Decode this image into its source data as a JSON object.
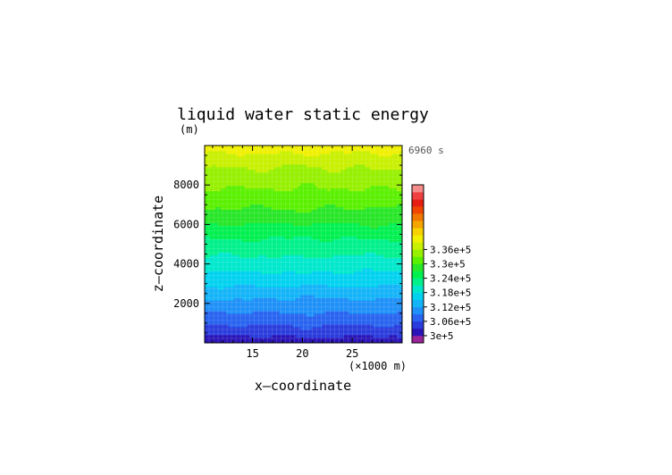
{
  "chart_data": {
    "type": "heatmap",
    "title": "liquid water static energy",
    "time_label": "6960 s",
    "xlabel": "x—coordinate",
    "ylabel": "z—coordinate",
    "x_unit": "(×1000 m)",
    "y_unit": "(m)",
    "xlim": [
      10.2,
      30
    ],
    "ylim": [
      0,
      10000
    ],
    "x_ticks": [
      15,
      20,
      25
    ],
    "y_ticks": [
      2000,
      4000,
      6000,
      8000
    ],
    "grid": true,
    "colorbar": {
      "position": "right",
      "labels": [
        "3.36e+5",
        "3.3e+5",
        "3.24e+5",
        "3.18e+5",
        "3.12e+5",
        "3.06e+5",
        "3e+5"
      ],
      "label_values": [
        336000,
        330000,
        324000,
        318000,
        312000,
        306000,
        300000
      ],
      "level_min": 297000,
      "level_step": 3000,
      "colors": [
        "#9b249b",
        "#2a14b8",
        "#2a3cdc",
        "#2864f0",
        "#1e90f8",
        "#14b4f8",
        "#00d2f0",
        "#00e8cc",
        "#00f08c",
        "#00f050",
        "#28e628",
        "#5af000",
        "#96f000",
        "#c8f000",
        "#f0f000",
        "#f5d200",
        "#f5a500",
        "#f07800",
        "#f04600",
        "#e61e14",
        "#f04141",
        "#f58c8c"
      ]
    },
    "profile_z": [
      0,
      1000,
      2000,
      3000,
      4000,
      5000,
      6000,
      7000,
      8000,
      9000,
      10000
    ],
    "profile_value": [
      298000,
      303500,
      308000,
      312500,
      316500,
      320000,
      324000,
      327500,
      330500,
      333500,
      337500
    ]
  }
}
